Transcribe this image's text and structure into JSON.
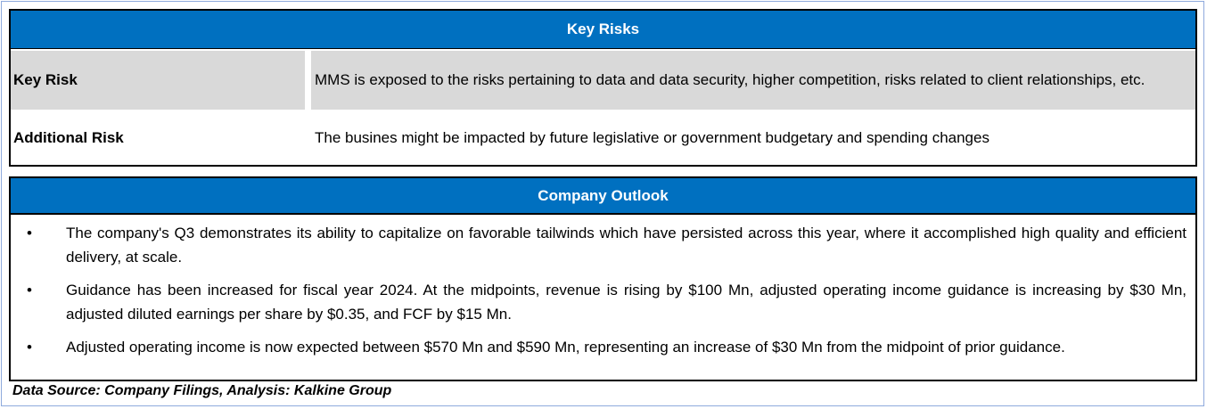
{
  "key_risks": {
    "title": "Key Risks",
    "rows": [
      {
        "label": "Key Risk",
        "text": "MMS is exposed to the risks pertaining to data and data security, higher competition, risks related to client relationships, etc."
      },
      {
        "label": "Additional Risk",
        "text": "The busines might be impacted by future legislative or government budgetary and spending changes"
      }
    ]
  },
  "company_outlook": {
    "title": "Company Outlook",
    "bullet_glyph": "•",
    "bullets": [
      "The company's Q3 demonstrates its ability to capitalize on favorable tailwinds which have persisted across this year, where it accomplished high quality and efficient delivery, at scale.",
      "Guidance has been increased for fiscal year 2024. At the midpoints, revenue is rising by $100 Mn, adjusted operating income guidance is increasing by $30 Mn, adjusted diluted earnings per share by $0.35, and FCF by $15 Mn.",
      "Adjusted operating income is now expected between $570 Mn and $590 Mn, representing an increase of $30 Mn from the midpoint of prior guidance."
    ]
  },
  "source_note": "Data Source: Company Filings, Analysis: Kalkine Group",
  "colors": {
    "header_bg": "#0070c0",
    "header_text": "#ffffff",
    "row_shade": "#d9d9d9"
  }
}
